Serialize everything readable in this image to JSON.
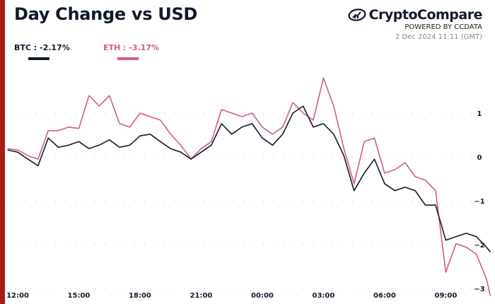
{
  "title": "Day Change vs USD",
  "brand": {
    "name": "CryptoCompare",
    "powered_by": "POWERED BY CCDATA",
    "timestamp": "2 Dec 2024 11:11 (GMT)",
    "logo_icon": "chart-in-ellipse-icon"
  },
  "legend": [
    {
      "label": "BTC : -2.17%",
      "color": "#111a2b"
    },
    {
      "label": "ETH : -3.17%",
      "color": "#d45a8c"
    }
  ],
  "colors": {
    "accent_bar": "#a51d12",
    "btc": "#111a2b",
    "eth": "#d45a8c"
  },
  "chart_data": {
    "type": "line",
    "title": "Day Change vs USD",
    "x_tick_labels": [
      "12:00",
      "15:00",
      "18:00",
      "21:00",
      "00:00",
      "03:00",
      "06:00",
      "09:00"
    ],
    "x_ticks": [
      "2024-12-01T12:00",
      "2024-12-01T15:00",
      "2024-12-01T18:00",
      "2024-12-01T21:00",
      "2024-12-02T00:00",
      "2024-12-02T03:00",
      "2024-12-02T06:00",
      "2024-12-02T09:00"
    ],
    "xlim": [
      "2024-12-01T11:25",
      "2024-12-02T11:11"
    ],
    "y_ticks": [
      1,
      0,
      -1,
      -2,
      -3
    ],
    "ylim": [
      -3.2,
      2.0
    ],
    "y_axis_side": "right",
    "grid": "horizontal dotted",
    "legend_placement": "top-left",
    "x": [
      "2024-12-01T11:30",
      "2024-12-01T12:00",
      "2024-12-01T12:30",
      "2024-12-01T13:00",
      "2024-12-01T13:30",
      "2024-12-01T14:00",
      "2024-12-01T14:30",
      "2024-12-01T15:00",
      "2024-12-01T15:30",
      "2024-12-01T16:00",
      "2024-12-01T16:30",
      "2024-12-01T17:00",
      "2024-12-01T17:30",
      "2024-12-01T18:00",
      "2024-12-01T18:30",
      "2024-12-01T19:00",
      "2024-12-01T19:30",
      "2024-12-01T20:00",
      "2024-12-01T20:30",
      "2024-12-01T21:00",
      "2024-12-01T21:30",
      "2024-12-01T22:00",
      "2024-12-01T22:30",
      "2024-12-01T23:00",
      "2024-12-01T23:30",
      "2024-12-02T00:00",
      "2024-12-02T00:30",
      "2024-12-02T01:00",
      "2024-12-02T01:30",
      "2024-12-02T02:00",
      "2024-12-02T02:30",
      "2024-12-02T03:00",
      "2024-12-02T03:30",
      "2024-12-02T04:00",
      "2024-12-02T04:30",
      "2024-12-02T05:00",
      "2024-12-02T05:30",
      "2024-12-02T06:00",
      "2024-12-02T06:30",
      "2024-12-02T07:00",
      "2024-12-02T07:30",
      "2024-12-02T08:00",
      "2024-12-02T08:30",
      "2024-12-02T09:00",
      "2024-12-02T09:30",
      "2024-12-02T10:00",
      "2024-12-02T10:30",
      "2024-12-02T11:00",
      "2024-12-02T11:11"
    ],
    "series": [
      {
        "name": "BTC",
        "color": "#111a2b",
        "values": [
          0.16,
          0.11,
          -0.05,
          -0.2,
          0.43,
          0.22,
          0.27,
          0.35,
          0.19,
          0.27,
          0.39,
          0.22,
          0.27,
          0.48,
          0.52,
          0.35,
          0.19,
          0.11,
          -0.05,
          0.11,
          0.27,
          0.76,
          0.52,
          0.68,
          0.76,
          0.43,
          0.27,
          0.52,
          1.0,
          1.16,
          0.68,
          0.76,
          0.52,
          0.03,
          -0.77,
          -0.37,
          -0.05,
          -0.61,
          -0.77,
          -0.69,
          -0.77,
          -1.1,
          -1.1,
          -1.9,
          -1.82,
          -1.74,
          -1.82,
          -2.06,
          -2.17
        ]
      },
      {
        "name": "ETH",
        "color": "#d45a8c",
        "values": [
          0.19,
          0.16,
          0.03,
          -0.05,
          0.6,
          0.6,
          0.68,
          0.65,
          1.4,
          1.16,
          1.4,
          0.76,
          0.68,
          1.0,
          0.92,
          0.84,
          0.52,
          0.27,
          -0.05,
          0.19,
          0.35,
          1.08,
          1.0,
          0.92,
          1.0,
          0.68,
          0.52,
          0.68,
          1.24,
          1.0,
          0.84,
          1.8,
          1.16,
          0.19,
          -0.61,
          0.35,
          0.43,
          -0.37,
          -0.29,
          -0.13,
          -0.45,
          -0.53,
          -0.77,
          -2.63,
          -1.98,
          -2.06,
          -2.22,
          -2.79,
          -3.17
        ]
      }
    ]
  }
}
